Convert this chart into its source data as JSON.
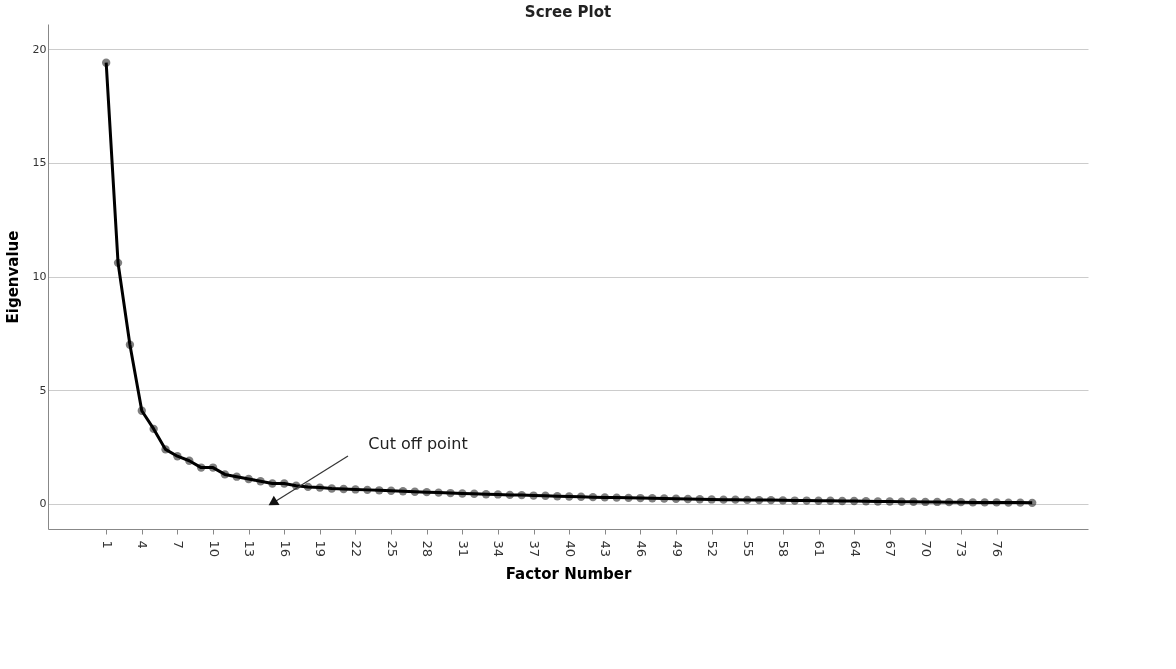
{
  "chart_data": {
    "type": "line",
    "title": "Scree Plot",
    "xlabel": "Factor Number",
    "ylabel": "Eigenvalue",
    "x": [
      1,
      2,
      3,
      4,
      5,
      6,
      7,
      8,
      9,
      10,
      11,
      12,
      13,
      14,
      15,
      16,
      17,
      18,
      19,
      20,
      21,
      22,
      23,
      24,
      25,
      26,
      27,
      28,
      29,
      30,
      31,
      32,
      33,
      34,
      35,
      36,
      37,
      38,
      39,
      40,
      41,
      42,
      43,
      44,
      45,
      46,
      47,
      48,
      49,
      50,
      51,
      52,
      53,
      54,
      55,
      56,
      57,
      58,
      59,
      60,
      61,
      62,
      63,
      64,
      65,
      66,
      67,
      68,
      69,
      70,
      71,
      72,
      73,
      74,
      75,
      76,
      77,
      78,
      79
    ],
    "series": [
      {
        "color": "#000000",
        "values": [
          19.4,
          10.6,
          7.0,
          4.1,
          3.3,
          2.4,
          2.1,
          1.9,
          1.6,
          1.6,
          1.3,
          1.2,
          1.1,
          1.0,
          0.9,
          0.9,
          0.8,
          0.75,
          0.72,
          0.68,
          0.66,
          0.64,
          0.62,
          0.6,
          0.58,
          0.56,
          0.54,
          0.52,
          0.5,
          0.48,
          0.46,
          0.45,
          0.43,
          0.42,
          0.4,
          0.39,
          0.37,
          0.36,
          0.34,
          0.33,
          0.32,
          0.3,
          0.29,
          0.28,
          0.27,
          0.26,
          0.25,
          0.24,
          0.23,
          0.22,
          0.21,
          0.2,
          0.19,
          0.19,
          0.18,
          0.17,
          0.17,
          0.16,
          0.15,
          0.15,
          0.14,
          0.14,
          0.13,
          0.13,
          0.12,
          0.11,
          0.11,
          0.1,
          0.1,
          0.09,
          0.09,
          0.08,
          0.08,
          0.07,
          0.07,
          0.07,
          0.06,
          0.06,
          0.05
        ]
      }
    ],
    "xlim": [
      -3.9,
      83.7
    ],
    "ylim": [
      -1.1,
      21.1
    ],
    "xticks": [
      1,
      4,
      7,
      10,
      13,
      16,
      19,
      22,
      25,
      28,
      31,
      34,
      37,
      40,
      43,
      46,
      49,
      52,
      55,
      58,
      61,
      64,
      67,
      70,
      73,
      76
    ],
    "yticks": [
      0,
      5,
      10,
      15,
      20
    ],
    "grid": "y",
    "marker": "circle",
    "line_style": "solid",
    "annotations": [
      "Cut off point"
    ]
  }
}
